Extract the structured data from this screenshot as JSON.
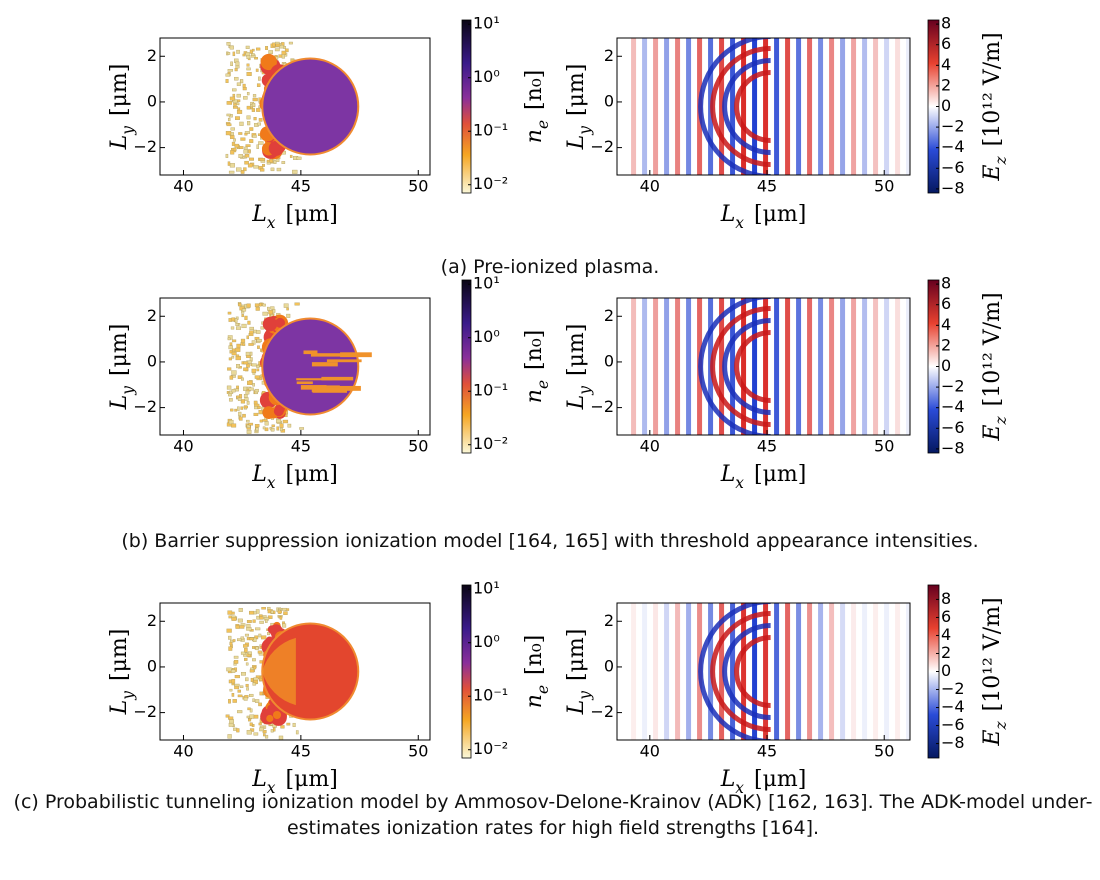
{
  "figures": [
    {
      "caption": "(a) Pre-ionized plasma.",
      "density": {
        "xlabel": {
          "symbol": "L",
          "sub": "x",
          "unit": "[μm]"
        },
        "ylabel": {
          "symbol": "L",
          "sub": "y",
          "unit": "[μm]"
        },
        "xlim": [
          39,
          50.5
        ],
        "ylim": [
          -3.2,
          2.8
        ],
        "xticks": [
          40,
          45,
          50
        ],
        "yticks": [
          {
            "value": -2,
            "label": "−2"
          },
          0,
          2
        ],
        "colorbar": {
          "label": {
            "symbol": "n",
            "sub": "e",
            "unit": "[n₀]"
          },
          "log": true,
          "lim": [
            0.007,
            12
          ],
          "ticks": [
            {
              "value": 0.01,
              "label": "10⁻²"
            },
            {
              "value": 0.1,
              "label": "10⁻¹"
            },
            {
              "value": 1,
              "label": "10⁰"
            },
            {
              "value": 10,
              "label": "10¹"
            }
          ]
        }
      },
      "field": {
        "xlabel": {
          "symbol": "L",
          "sub": "x",
          "unit": "[μm]"
        },
        "ylabel": {
          "symbol": "L",
          "sub": "y",
          "unit": "[μm]"
        },
        "xlim": [
          38.6,
          51.1
        ],
        "ylim": [
          -3.2,
          2.8
        ],
        "xticks": [
          40,
          45,
          50
        ],
        "yticks": [
          {
            "value": -2,
            "label": "−2"
          },
          0,
          2
        ],
        "colorbar": {
          "label": {
            "symbol": "E",
            "sub": "z",
            "unit": "[10¹² V/m]"
          },
          "lim": [
            -8.4,
            8.4
          ],
          "ticks": [
            8,
            6,
            4,
            2,
            0,
            {
              "value": -2,
              "label": "−2"
            },
            {
              "value": -4,
              "label": "−4"
            },
            {
              "value": -6,
              "label": "−6"
            },
            {
              "value": -8,
              "label": "−8"
            }
          ]
        }
      }
    },
    {
      "caption": "(b) Barrier suppression ionization model [164, 165] with threshold appearance intensities.",
      "density": {
        "xlabel": {
          "symbol": "L",
          "sub": "x",
          "unit": "[μm]"
        },
        "ylabel": {
          "symbol": "L",
          "sub": "y",
          "unit": "[μm]"
        },
        "xlim": [
          39,
          50.5
        ],
        "ylim": [
          -3.2,
          2.8
        ],
        "xticks": [
          40,
          45,
          50
        ],
        "yticks": [
          {
            "value": -2,
            "label": "−2"
          },
          0,
          2
        ],
        "colorbar": {
          "label": {
            "symbol": "n",
            "sub": "e",
            "unit": "[n₀]"
          },
          "log": true,
          "lim": [
            0.007,
            12
          ],
          "ticks": [
            {
              "value": 0.01,
              "label": "10⁻²"
            },
            {
              "value": 0.1,
              "label": "10⁻¹"
            },
            {
              "value": 1,
              "label": "10⁰"
            },
            {
              "value": 10,
              "label": "10¹"
            }
          ]
        }
      },
      "field": {
        "xlabel": {
          "symbol": "L",
          "sub": "x",
          "unit": "[μm]"
        },
        "ylabel": {
          "symbol": "L",
          "sub": "y",
          "unit": "[μm]"
        },
        "xlim": [
          38.6,
          51.1
        ],
        "ylim": [
          -3.2,
          2.8
        ],
        "xticks": [
          40,
          45,
          50
        ],
        "yticks": [
          {
            "value": -2,
            "label": "−2"
          },
          0,
          2
        ],
        "colorbar": {
          "label": {
            "symbol": "E",
            "sub": "z",
            "unit": "[10¹² V/m]"
          },
          "lim": [
            -8.4,
            8.4
          ],
          "ticks": [
            8,
            6,
            4,
            2,
            0,
            {
              "value": -2,
              "label": "−2"
            },
            {
              "value": -4,
              "label": "−4"
            },
            {
              "value": -6,
              "label": "−6"
            },
            {
              "value": -8,
              "label": "−8"
            }
          ]
        }
      }
    },
    {
      "caption": "(c) Probabilistic tunneling ionization model by Ammosov-Delone-Krainov (ADK) [162, 163]. The ADK-model under-estimates ionization rates for high field strengths [164].",
      "density": {
        "xlabel": {
          "symbol": "L",
          "sub": "x",
          "unit": "[μm]"
        },
        "ylabel": {
          "symbol": "L",
          "sub": "y",
          "unit": "[μm]"
        },
        "xlim": [
          39,
          50.5
        ],
        "ylim": [
          -3.2,
          2.8
        ],
        "xticks": [
          40,
          45,
          50
        ],
        "yticks": [
          {
            "value": -2,
            "label": "−2"
          },
          0,
          2
        ],
        "colorbar": {
          "label": {
            "symbol": "n",
            "sub": "e",
            "unit": "[n₀]"
          },
          "log": true,
          "lim": [
            0.007,
            12
          ],
          "ticks": [
            {
              "value": 0.01,
              "label": "10⁻²"
            },
            {
              "value": 0.1,
              "label": "10⁻¹"
            },
            {
              "value": 1,
              "label": "10⁰"
            },
            {
              "value": 10,
              "label": "10¹"
            }
          ]
        }
      },
      "field": {
        "xlabel": {
          "symbol": "L",
          "sub": "x",
          "unit": "[μm]"
        },
        "ylabel": {
          "symbol": "L",
          "sub": "y",
          "unit": "[μm]"
        },
        "xlim": [
          38.6,
          51.1
        ],
        "ylim": [
          -3.2,
          2.8
        ],
        "xticks": [
          40,
          45,
          50
        ],
        "yticks": [
          {
            "value": -2,
            "label": "−2"
          },
          0,
          2
        ],
        "colorbar": {
          "label": {
            "symbol": "E",
            "sub": "z",
            "unit": "[10¹² V/m]"
          },
          "lim": [
            -9.6,
            9.6
          ],
          "ticks": [
            8,
            6,
            4,
            2,
            0,
            {
              "value": -2,
              "label": "−2"
            },
            {
              "value": -4,
              "label": "−4"
            },
            {
              "value": -6,
              "label": "−6"
            },
            {
              "value": -8,
              "label": "−8"
            }
          ]
        }
      }
    }
  ]
}
